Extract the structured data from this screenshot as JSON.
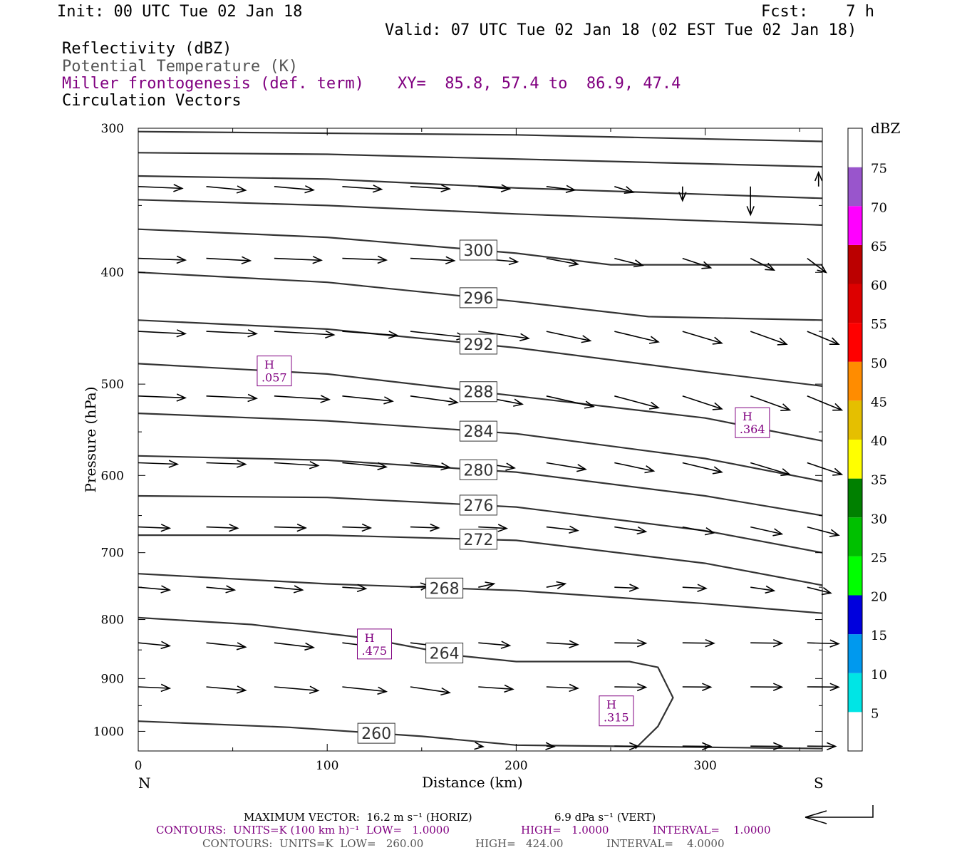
{
  "header": {
    "init": "Init: 00 UTC Tue 02 Jan 18",
    "fcst": "Fcst:    7 h",
    "valid": "Valid: 07 UTC Tue 02 Jan 18 (02 EST Tue 02 Jan 18)",
    "field1": "Reflectivity (dBZ)",
    "field2": "Potential Temperature (K)",
    "field3": "Miller frontogenesis (def. term)",
    "xy": "XY=  85.8, 57.4 to  86.9, 47.4",
    "field4": "Circulation Vectors"
  },
  "colors": {
    "theta": "#333333",
    "fronto": "#800080",
    "vector": "#000000"
  },
  "colorbar": {
    "unit": "dBZ",
    "labels": [
      "5",
      "10",
      "15",
      "20",
      "25",
      "30",
      "35",
      "40",
      "45",
      "50",
      "55",
      "60",
      "65",
      "70",
      "75"
    ],
    "colors": [
      "#ffffff",
      "#00e5e5",
      "#0099ee",
      "#0000dd",
      "#00ff00",
      "#00c000",
      "#008000",
      "#ffff00",
      "#e5bf00",
      "#ff8c00",
      "#ff0000",
      "#dd0000",
      "#bb0000",
      "#ff00ff",
      "#9955cc",
      "#ffffff"
    ]
  },
  "chart_data": {
    "type": "cross-section",
    "xlabel": "Distance (km)",
    "ylabel": "Pressure (hPa)",
    "xlim": [
      0,
      362
    ],
    "ylim": [
      300,
      1040
    ],
    "y_log": true,
    "x_ticks": [
      "0",
      "100",
      "200",
      "300"
    ],
    "x_tick_values": [
      0,
      100,
      200,
      300
    ],
    "y_ticks": [
      "300",
      "400",
      "500",
      "600",
      "700",
      "800",
      "900",
      "1000"
    ],
    "y_tick_values": [
      300,
      400,
      500,
      600,
      700,
      800,
      900,
      1000
    ],
    "left_label": "N",
    "right_label": "S",
    "theta_contours": [
      {
        "label": "",
        "points": [
          [
            0,
            302
          ],
          [
            100,
            303
          ],
          [
            200,
            304
          ],
          [
            362,
            308
          ]
        ]
      },
      {
        "label": "",
        "points": [
          [
            0,
            315
          ],
          [
            100,
            316
          ],
          [
            200,
            319
          ],
          [
            362,
            324
          ]
        ]
      },
      {
        "label": "",
        "points": [
          [
            0,
            330
          ],
          [
            100,
            332
          ],
          [
            200,
            338
          ],
          [
            362,
            345
          ]
        ]
      },
      {
        "label": "",
        "points": [
          [
            0,
            346
          ],
          [
            100,
            350
          ],
          [
            200,
            356
          ],
          [
            362,
            364
          ]
        ]
      },
      {
        "label": "300",
        "points": [
          [
            0,
            367
          ],
          [
            100,
            373
          ],
          [
            200,
            385
          ],
          [
            250,
            394
          ],
          [
            362,
            394
          ]
        ]
      },
      {
        "label": "296",
        "points": [
          [
            0,
            400
          ],
          [
            100,
            408
          ],
          [
            200,
            424
          ],
          [
            270,
            437
          ],
          [
            362,
            440
          ]
        ]
      },
      {
        "label": "292",
        "points": [
          [
            0,
            440
          ],
          [
            100,
            448
          ],
          [
            200,
            465
          ],
          [
            300,
            488
          ],
          [
            362,
            502
          ]
        ]
      },
      {
        "label": "288",
        "points": [
          [
            0,
            480
          ],
          [
            100,
            490
          ],
          [
            200,
            512
          ],
          [
            300,
            535
          ],
          [
            362,
            560
          ]
        ]
      },
      {
        "label": "284",
        "points": [
          [
            0,
            530
          ],
          [
            100,
            538
          ],
          [
            200,
            552
          ],
          [
            300,
            580
          ],
          [
            362,
            607
          ]
        ]
      },
      {
        "label": "280",
        "points": [
          [
            0,
            577
          ],
          [
            100,
            582
          ],
          [
            200,
            596
          ],
          [
            300,
            625
          ],
          [
            362,
            650
          ]
        ]
      },
      {
        "label": "276",
        "points": [
          [
            0,
            625
          ],
          [
            100,
            627
          ],
          [
            200,
            639
          ],
          [
            300,
            670
          ],
          [
            362,
            700
          ]
        ]
      },
      {
        "label": "272",
        "points": [
          [
            0,
            676
          ],
          [
            100,
            676
          ],
          [
            200,
            683
          ],
          [
            300,
            715
          ],
          [
            362,
            747
          ]
        ]
      },
      {
        "label": "268",
        "points": [
          [
            0,
            730
          ],
          [
            100,
            745
          ],
          [
            200,
            755
          ],
          [
            300,
            775
          ],
          [
            362,
            790
          ]
        ]
      },
      {
        "label": "264",
        "points": [
          [
            0,
            797
          ],
          [
            60,
            808
          ],
          [
            120,
            830
          ],
          [
            170,
            860
          ],
          [
            200,
            870
          ],
          [
            260,
            870
          ],
          [
            275,
            880
          ],
          [
            283,
            935
          ],
          [
            275,
            990
          ],
          [
            263,
            1035
          ]
        ]
      },
      {
        "label": "260",
        "points": [
          [
            0,
            980
          ],
          [
            80,
            992
          ],
          [
            150,
            1010
          ],
          [
            200,
            1028
          ],
          [
            362,
            1035
          ]
        ]
      }
    ],
    "fronto_maxima": [
      {
        "label": "H",
        "value": ".057",
        "x": 72,
        "p": 487
      },
      {
        "label": "H",
        "value": ".364",
        "x": 325,
        "p": 540
      },
      {
        "label": "H",
        "value": ".475",
        "x": 125,
        "p": 840
      },
      {
        "label": "H",
        "value": ".315",
        "x": 253,
        "p": 960
      }
    ],
    "vector_rows": [
      {
        "p": 337,
        "vectors": [
          [
            0,
            28,
            0.8
          ],
          [
            36,
            25,
            1.6
          ],
          [
            72,
            25,
            1.5
          ],
          [
            108,
            25,
            1.2
          ],
          [
            144,
            25,
            1.0
          ],
          [
            180,
            20,
            1.0
          ],
          [
            216,
            18,
            1.5
          ],
          [
            252,
            12,
            2.5
          ],
          [
            288,
            0,
            6
          ],
          [
            324,
            0,
            12
          ],
          [
            360,
            0,
            -6
          ]
        ]
      },
      {
        "p": 389,
        "vectors": [
          [
            0,
            30,
            0.7
          ],
          [
            36,
            28,
            1.0
          ],
          [
            72,
            30,
            0.8
          ],
          [
            108,
            28,
            0.7
          ],
          [
            144,
            28,
            1.0
          ],
          [
            180,
            25,
            1.5
          ],
          [
            216,
            20,
            2.5
          ],
          [
            252,
            18,
            3
          ],
          [
            288,
            18,
            4
          ],
          [
            324,
            15,
            5
          ],
          [
            354,
            12,
            6
          ]
        ]
      },
      {
        "p": 450,
        "vectors": [
          [
            0,
            30,
            1.0
          ],
          [
            36,
            32,
            1.0
          ],
          [
            72,
            38,
            1.5
          ],
          [
            108,
            35,
            1.7
          ],
          [
            144,
            35,
            2.5
          ],
          [
            180,
            32,
            3
          ],
          [
            216,
            28,
            4
          ],
          [
            252,
            28,
            4.5
          ],
          [
            288,
            25,
            5
          ],
          [
            324,
            23,
            5.5
          ],
          [
            354,
            20,
            5.5
          ]
        ]
      },
      {
        "p": 512,
        "vectors": [
          [
            0,
            30,
            0.8
          ],
          [
            36,
            32,
            1.0
          ],
          [
            72,
            35,
            1.5
          ],
          [
            108,
            32,
            2.2
          ],
          [
            144,
            30,
            2.8
          ],
          [
            180,
            28,
            3.5
          ],
          [
            216,
            30,
            4.5
          ],
          [
            252,
            28,
            5
          ],
          [
            288,
            25,
            5.5
          ],
          [
            324,
            25,
            6
          ],
          [
            354,
            22,
            6
          ]
        ]
      },
      {
        "p": 585,
        "vectors": [
          [
            0,
            25,
            0.6
          ],
          [
            36,
            25,
            0.6
          ],
          [
            72,
            28,
            1.2
          ],
          [
            108,
            28,
            1.8
          ],
          [
            144,
            25,
            2
          ],
          [
            180,
            23,
            2.2
          ],
          [
            216,
            25,
            2.8
          ],
          [
            252,
            25,
            3.5
          ],
          [
            288,
            25,
            4
          ],
          [
            324,
            25,
            5
          ],
          [
            354,
            22,
            5
          ]
        ]
      },
      {
        "p": 665,
        "vectors": [
          [
            0,
            20,
            0.5
          ],
          [
            36,
            20,
            0.5
          ],
          [
            72,
            20,
            0.4
          ],
          [
            108,
            18,
            0.4
          ],
          [
            144,
            18,
            0.4
          ],
          [
            180,
            18,
            0.6
          ],
          [
            216,
            20,
            1.5
          ],
          [
            252,
            20,
            2
          ],
          [
            288,
            20,
            2.5
          ],
          [
            324,
            20,
            3
          ],
          [
            354,
            20,
            3.5
          ]
        ]
      },
      {
        "p": 750,
        "vectors": [
          [
            0,
            20,
            1.2
          ],
          [
            36,
            18,
            1.2
          ],
          [
            72,
            18,
            1.2
          ],
          [
            108,
            15,
            0.6
          ],
          [
            144,
            12,
            -0.6
          ],
          [
            180,
            10,
            -1.5
          ],
          [
            216,
            12,
            -1.5
          ],
          [
            252,
            15,
            0.4
          ],
          [
            288,
            15,
            0.5
          ],
          [
            324,
            15,
            1.5
          ],
          [
            354,
            15,
            2.5
          ]
        ]
      },
      {
        "p": 838,
        "vectors": [
          [
            0,
            20,
            1.3
          ],
          [
            36,
            25,
            1.8
          ],
          [
            72,
            25,
            2
          ],
          [
            108,
            25,
            2
          ],
          [
            144,
            25,
            2
          ],
          [
            180,
            20,
            1.2
          ],
          [
            216,
            20,
            0.8
          ],
          [
            252,
            20,
            0.2
          ],
          [
            288,
            20,
            0.2
          ],
          [
            324,
            20,
            0.2
          ],
          [
            354,
            20,
            0.4
          ]
        ]
      },
      {
        "p": 915,
        "vectors": [
          [
            0,
            20,
            0.6
          ],
          [
            36,
            25,
            1.5
          ],
          [
            72,
            28,
            1.6
          ],
          [
            108,
            28,
            2
          ],
          [
            144,
            25,
            2.5
          ],
          [
            180,
            22,
            1.0
          ],
          [
            216,
            20,
            0.6
          ],
          [
            252,
            20,
            0.2
          ],
          [
            288,
            18,
            0.1
          ],
          [
            324,
            20,
            0.1
          ],
          [
            354,
            20,
            0.1
          ]
        ]
      },
      {
        "p": 1030,
        "vectors": [
          [
            180,
            3,
            0.2
          ],
          [
            216,
            5,
            0.2
          ],
          [
            252,
            15,
            0.1
          ],
          [
            288,
            18,
            0.1
          ],
          [
            324,
            20,
            0.1
          ],
          [
            354,
            18,
            0.1
          ]
        ]
      }
    ]
  },
  "footer": {
    "line1a": "MAXIMUM VECTOR:  16.2 m s⁻¹ (HORIZ)",
    "line1b": "6.9 dPa s⁻¹ (VERT)",
    "line2a": "CONTOURS:  UNITS=K (100 km h)⁻¹  LOW=   1.0000",
    "line2b": "HIGH=   1.0000",
    "line2c": "INTERVAL=    1.0000",
    "line3a": "CONTOURS:  UNITS=K  LOW=   260.00",
    "line3b": "HIGH=   424.00",
    "line3c": "INTERVAL=    4.0000"
  }
}
